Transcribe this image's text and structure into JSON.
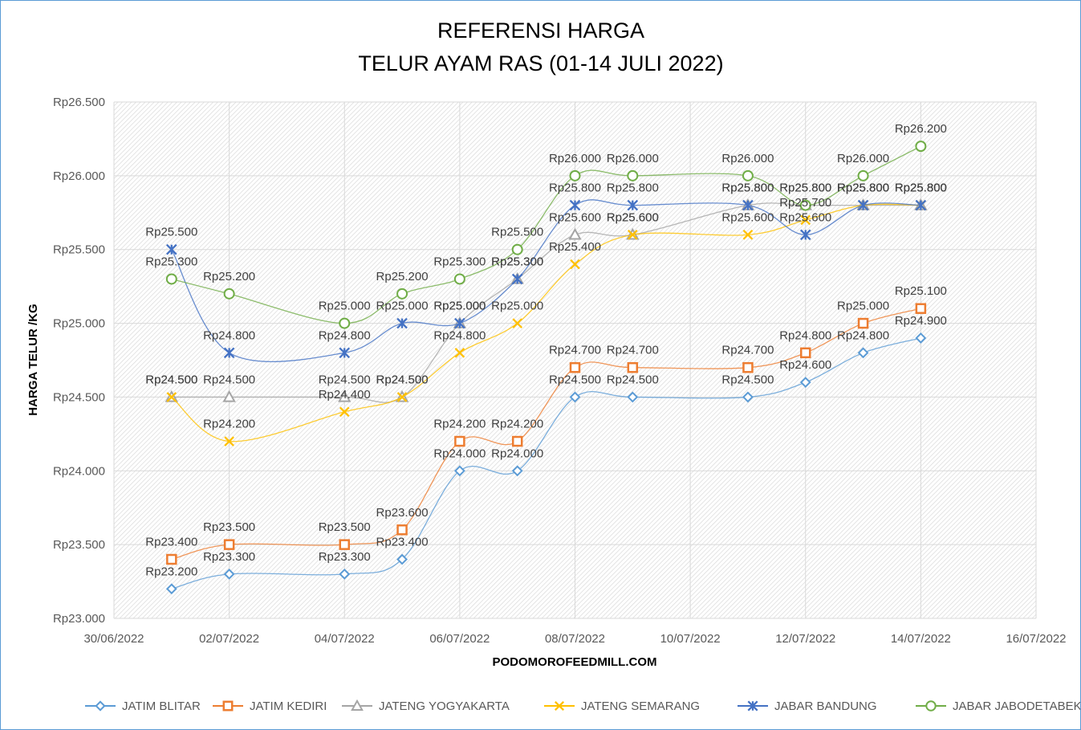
{
  "chart_data": {
    "type": "line",
    "title_line1": "REFERENSI HARGA",
    "title_line2": "TELUR AYAM RAS (01-14 JULI 2022)",
    "xlabel": "PODOMOROFEEDMILL.COM",
    "ylabel": "HARGA TELUR /KG",
    "xlim": [
      "2022-06-30",
      "2022-07-16"
    ],
    "ylim": [
      23000,
      26500
    ],
    "y_ticks": [
      "Rp23.000",
      "Rp23.500",
      "Rp24.000",
      "Rp24.500",
      "Rp25.000",
      "Rp25.500",
      "Rp26.000",
      "Rp26.500"
    ],
    "y_tick_values": [
      23000,
      23500,
      24000,
      24500,
      25000,
      25500,
      26000,
      26500
    ],
    "x_ticks": [
      "30/06/2022",
      "02/07/2022",
      "04/07/2022",
      "06/07/2022",
      "08/07/2022",
      "10/07/2022",
      "12/07/2022",
      "14/07/2022",
      "16/07/2022"
    ],
    "x_tick_dates": [
      "2022-06-30",
      "2022-07-02",
      "2022-07-04",
      "2022-07-06",
      "2022-07-08",
      "2022-07-10",
      "2022-07-12",
      "2022-07-14",
      "2022-07-16"
    ],
    "x": [
      "2022-07-01",
      "2022-07-02",
      "2022-07-04",
      "2022-07-05",
      "2022-07-06",
      "2022-07-07",
      "2022-07-08",
      "2022-07-09",
      "2022-07-11",
      "2022-07-12",
      "2022-07-13",
      "2022-07-14"
    ],
    "grid": true,
    "legend_position": "bottom",
    "series": [
      {
        "name": "JATIM BLITAR",
        "color": "#5b9bd5",
        "marker": "diamond",
        "values": [
          23200,
          23300,
          23300,
          23400,
          24000,
          24000,
          24500,
          24500,
          24500,
          24600,
          24800,
          24900
        ],
        "labels": [
          "Rp23.200",
          "Rp23.300",
          "Rp23.300",
          "Rp23.400",
          "Rp24.000",
          "Rp24.000",
          "Rp24.500",
          "Rp24.500",
          "Rp24.500",
          "Rp24.600",
          "Rp24.800",
          "Rp24.900"
        ]
      },
      {
        "name": "JATIM KEDIRI",
        "color": "#ed7d31",
        "marker": "square",
        "values": [
          23400,
          23500,
          23500,
          23600,
          24200,
          24200,
          24700,
          24700,
          24700,
          24800,
          25000,
          25100
        ],
        "labels": [
          "Rp23.400",
          "Rp23.500",
          "Rp23.500",
          "Rp23.600",
          "Rp24.200",
          "Rp24.200",
          "Rp24.700",
          "Rp24.700",
          "Rp24.700",
          "Rp24.800",
          "Rp25.000",
          "Rp25.100"
        ]
      },
      {
        "name": "JATENG YOGYAKARTA",
        "color": "#a5a5a5",
        "marker": "triangle",
        "values": [
          24500,
          24500,
          24500,
          24500,
          25000,
          25300,
          25600,
          25600,
          25800,
          25800,
          25800,
          25800
        ],
        "labels": [
          "Rp24.500",
          "Rp24.500",
          "Rp24.500",
          "Rp24.500",
          "Rp25.000",
          "Rp25.300",
          "Rp25.600",
          "Rp25.600",
          "Rp25.800",
          "Rp25.800",
          "Rp25.800",
          "Rp25.800"
        ]
      },
      {
        "name": "JATENG SEMARANG",
        "color": "#ffc000",
        "marker": "x",
        "values": [
          24500,
          24200,
          24400,
          24500,
          24800,
          25000,
          25400,
          25600,
          25600,
          25700,
          25800,
          25800
        ],
        "labels": [
          "Rp24.500",
          "Rp24.200",
          "Rp24.400",
          "Rp24.500",
          "Rp24.800",
          "Rp25.000",
          "Rp25.400",
          "Rp25.600",
          "Rp25.600",
          "Rp25.700",
          "Rp25.800",
          "Rp25.800"
        ]
      },
      {
        "name": "JABAR BANDUNG",
        "color": "#4472c4",
        "marker": "star",
        "values": [
          25500,
          24800,
          24800,
          25000,
          25000,
          25300,
          25800,
          25800,
          25800,
          25600,
          25800,
          25800
        ],
        "labels": [
          "Rp25.500",
          "Rp24.800",
          "Rp24.800",
          "Rp25.000",
          "Rp25.000",
          "Rp25.300",
          "Rp25.800",
          "Rp25.800",
          "Rp25.800",
          "Rp25.600",
          "Rp25.800",
          "Rp25.800"
        ]
      },
      {
        "name": "JABAR JABODETABEK",
        "color": "#70ad47",
        "marker": "circle",
        "values": [
          25300,
          25200,
          25000,
          25200,
          25300,
          25500,
          26000,
          26000,
          26000,
          25800,
          26000,
          26200
        ],
        "labels": [
          "Rp25.300",
          "Rp25.200",
          "Rp25.000",
          "Rp25.200",
          "Rp25.300",
          "Rp25.500",
          "Rp26.000",
          "Rp26.000",
          "Rp26.000",
          "Rp25.800",
          "Rp26.000",
          "Rp26.200"
        ]
      }
    ]
  }
}
